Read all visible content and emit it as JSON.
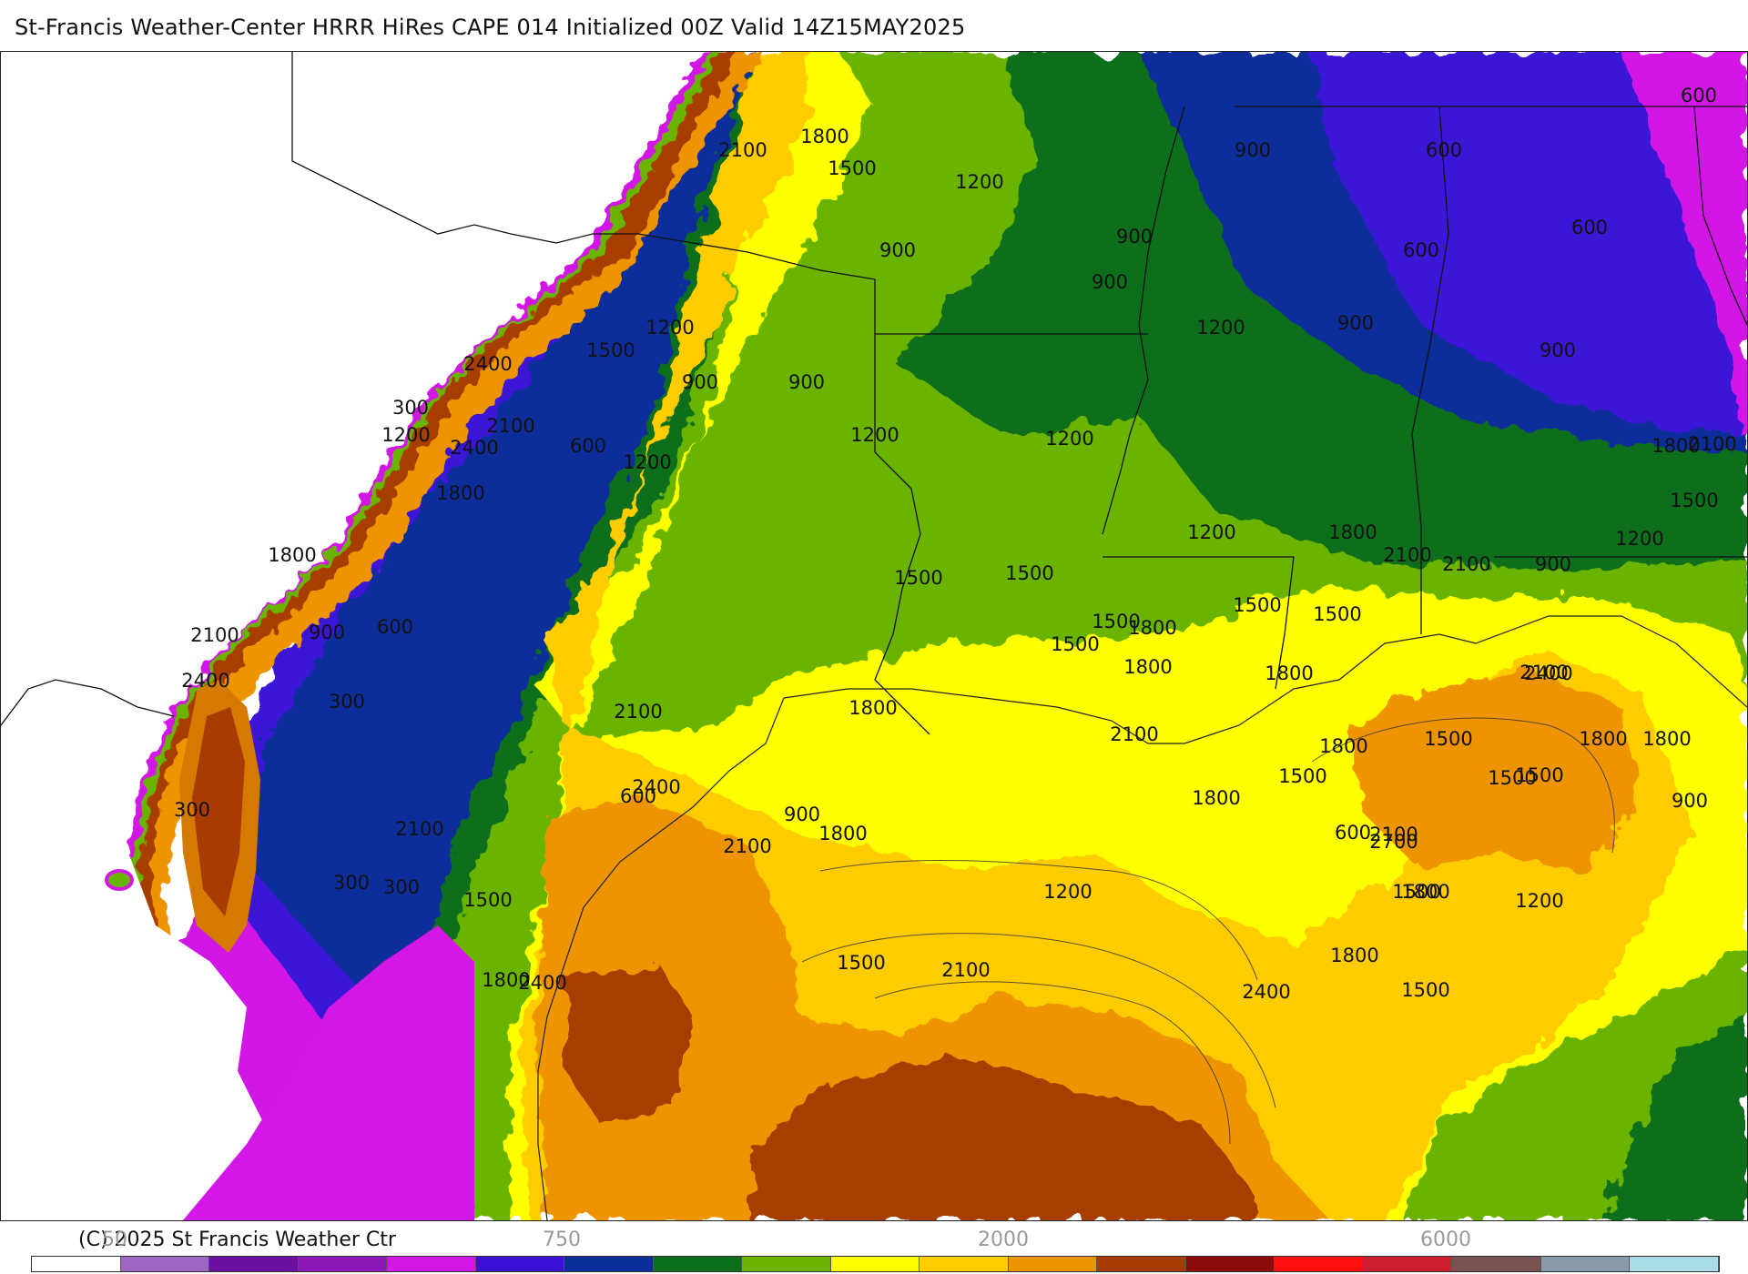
{
  "title": "St-Francis Weather-Center HRRR HiRes CAPE  014 Initialized  00Z Valid 14Z15MAY2025",
  "footer": {
    "copyright": "(C) 2025 St Francis Weather Ctr",
    "ticks": [
      "50",
      "750",
      "2000",
      "6000"
    ]
  },
  "legend_colors": [
    "#ffffff",
    "#9e66c2",
    "#6a0fa0",
    "#8c18b8",
    "#d217e6",
    "#3a12d6",
    "#0a2f9a",
    "#0a6e1c",
    "#6ab400",
    "#ffff00",
    "#ffcc00",
    "#ee9400",
    "#a83c00",
    "#8b0a0a",
    "#ff1010",
    "#cc2030",
    "#7a5252",
    "#8a9aa8",
    "#a8dce6"
  ],
  "contour_labels": [
    "1800",
    "1500",
    "2100",
    "1200",
    "900",
    "900",
    "900",
    "600",
    "600",
    "600",
    "600",
    "1200",
    "1500",
    "2400",
    "300",
    "1200",
    "900",
    "2100",
    "2400",
    "900",
    "900",
    "1200",
    "1200",
    "1200",
    "900",
    "900",
    "2100",
    "1800",
    "1200",
    "1200",
    "1500",
    "1200",
    "900",
    "1800",
    "1500",
    "1800",
    "1500",
    "600",
    "1800",
    "2100",
    "1500",
    "1500",
    "600",
    "2100",
    "900",
    "1500",
    "1800",
    "1500",
    "2400",
    "300",
    "1800",
    "2100",
    "1800",
    "2100",
    "2100",
    "1800",
    "1800",
    "2400",
    "1800",
    "1500",
    "2100",
    "1800",
    "1500",
    "1500",
    "900",
    "1800",
    "1500",
    "300",
    "600",
    "900",
    "2100",
    "2100",
    "1800",
    "600",
    "2700",
    "1200",
    "1800",
    "2100",
    "1500",
    "1500",
    "1200",
    "300",
    "2400",
    "1800",
    "1800",
    "1500",
    "2100",
    "2400",
    "2400",
    "1500",
    "300"
  ]
}
